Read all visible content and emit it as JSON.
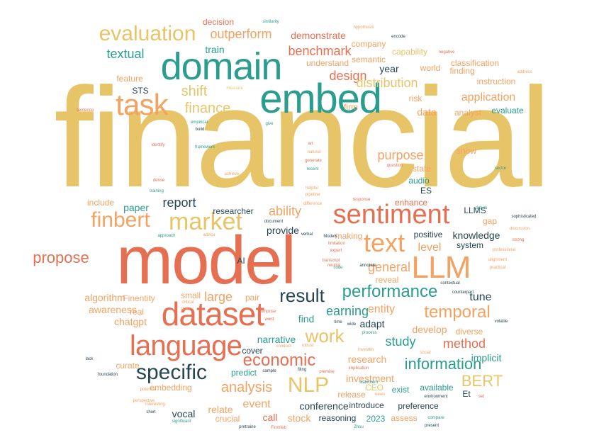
{
  "colors": {
    "yellow": "#e8c468",
    "red": "#e76f51",
    "teal": "#2a9d8f",
    "orange": "#f4a261",
    "navy": "#264653"
  },
  "words": [
    {
      "text": "financial",
      "color": "yellow"
    },
    {
      "text": "model",
      "color": "red"
    },
    {
      "text": "domain",
      "color": "teal"
    },
    {
      "text": "embed",
      "color": "teal"
    },
    {
      "text": "task",
      "color": "orange"
    },
    {
      "text": "evaluation",
      "color": "yellow"
    },
    {
      "text": "dataset",
      "color": "red"
    },
    {
      "text": "language",
      "color": "red"
    },
    {
      "text": "sentiment",
      "color": "red"
    },
    {
      "text": "LLM",
      "color": "orange"
    },
    {
      "text": "text",
      "color": "orange"
    },
    {
      "text": "market",
      "color": "yellow"
    },
    {
      "text": "finbert",
      "color": "orange"
    },
    {
      "text": "specific",
      "color": "navy"
    },
    {
      "text": "NLP",
      "color": "yellow"
    },
    {
      "text": "work",
      "color": "yellow"
    },
    {
      "text": "temporal",
      "color": "orange"
    },
    {
      "text": "performance",
      "color": "teal"
    },
    {
      "text": "result",
      "color": "navy"
    },
    {
      "text": "economic",
      "color": "red"
    },
    {
      "text": "information",
      "color": "teal"
    },
    {
      "text": "analysis",
      "color": "orange"
    },
    {
      "text": "propose",
      "color": "red"
    },
    {
      "text": "shift",
      "color": "yellow"
    },
    {
      "text": "finance",
      "color": "yellow"
    },
    {
      "text": "benchmark",
      "color": "red"
    },
    {
      "text": "outperform",
      "color": "orange"
    },
    {
      "text": "textual",
      "color": "teal"
    },
    {
      "text": "design",
      "color": "red"
    },
    {
      "text": "distribution",
      "color": "yellow"
    },
    {
      "text": "general",
      "color": "orange"
    },
    {
      "text": "ability",
      "color": "orange"
    },
    {
      "text": "report",
      "color": "navy"
    },
    {
      "text": "BERT",
      "color": "yellow"
    },
    {
      "text": "method",
      "color": "red"
    },
    {
      "text": "earning",
      "color": "teal"
    },
    {
      "text": "entity",
      "color": "orange"
    },
    {
      "text": "large",
      "color": "orange"
    },
    {
      "text": "study",
      "color": "teal"
    },
    {
      "text": "purpose",
      "color": "orange"
    },
    {
      "text": "level",
      "color": "orange"
    },
    {
      "text": "application",
      "color": "orange"
    },
    {
      "text": "demonstrate",
      "color": "red"
    },
    {
      "text": "train",
      "color": "teal"
    },
    {
      "text": "year",
      "color": "navy"
    },
    {
      "text": "data",
      "color": "orange"
    },
    {
      "text": "provide",
      "color": "navy"
    },
    {
      "text": "knowledge",
      "color": "navy"
    },
    {
      "text": "tune",
      "color": "navy"
    },
    {
      "text": "narrative",
      "color": "teal"
    },
    {
      "text": "find",
      "color": "teal"
    },
    {
      "text": "develop",
      "color": "orange"
    },
    {
      "text": "adapt",
      "color": "navy"
    },
    {
      "text": "event",
      "color": "orange"
    },
    {
      "text": "conference",
      "color": "navy"
    },
    {
      "text": "stock",
      "color": "orange"
    },
    {
      "text": "research",
      "color": "orange"
    },
    {
      "text": "investment",
      "color": "orange"
    },
    {
      "text": "implicit",
      "color": "teal"
    },
    {
      "text": "vocal",
      "color": "navy"
    },
    {
      "text": "call",
      "color": "red"
    },
    {
      "text": "relate",
      "color": "orange"
    },
    {
      "text": "chatgpt",
      "color": "orange"
    },
    {
      "text": "algorithm",
      "color": "orange"
    },
    {
      "text": "awareness",
      "color": "orange"
    },
    {
      "text": "paper",
      "color": "teal"
    },
    {
      "text": "STS",
      "color": "navy"
    },
    {
      "text": "feature",
      "color": "orange"
    },
    {
      "text": "include",
      "color": "orange"
    },
    {
      "text": "decision",
      "color": "red"
    },
    {
      "text": "company",
      "color": "orange"
    },
    {
      "text": "semantic",
      "color": "orange"
    },
    {
      "text": "capability",
      "color": "yellow"
    },
    {
      "text": "classification",
      "color": "orange"
    },
    {
      "text": "finding",
      "color": "orange"
    },
    {
      "text": "world",
      "color": "orange"
    },
    {
      "text": "understand",
      "color": "orange"
    },
    {
      "text": "instruction",
      "color": "orange"
    },
    {
      "text": "analyst",
      "color": "orange"
    },
    {
      "text": "evaluate",
      "color": "teal"
    },
    {
      "text": "risk",
      "color": "orange"
    },
    {
      "text": "firm",
      "color": "orange"
    },
    {
      "text": "show",
      "color": "orange"
    },
    {
      "text": "state",
      "color": "orange"
    },
    {
      "text": "audio",
      "color": "teal"
    },
    {
      "text": "enhance",
      "color": "red"
    },
    {
      "text": "LLMS",
      "color": "navy"
    },
    {
      "text": "gap",
      "color": "orange"
    },
    {
      "text": "system",
      "color": "navy"
    },
    {
      "text": "positive",
      "color": "navy"
    },
    {
      "text": "making",
      "color": "orange"
    },
    {
      "text": "reveal",
      "color": "orange"
    },
    {
      "text": "researcher",
      "color": "navy"
    },
    {
      "text": "small",
      "color": "orange"
    },
    {
      "text": "pair",
      "color": "orange"
    },
    {
      "text": "real",
      "color": "orange"
    },
    {
      "text": "Finentity",
      "color": "orange"
    },
    {
      "text": "diverse",
      "color": "orange"
    },
    {
      "text": "available",
      "color": "teal"
    },
    {
      "text": "exist",
      "color": "teal"
    },
    {
      "text": "preference",
      "color": "navy"
    },
    {
      "text": "introduce",
      "color": "navy"
    },
    {
      "text": "reasoning",
      "color": "navy"
    },
    {
      "text": "assess",
      "color": "orange"
    },
    {
      "text": "2023",
      "color": "teal"
    },
    {
      "text": "predict",
      "color": "teal"
    },
    {
      "text": "cover",
      "color": "navy"
    },
    {
      "text": "embedding",
      "color": "orange"
    },
    {
      "text": "crucial",
      "color": "orange"
    },
    {
      "text": "curate",
      "color": "orange"
    },
    {
      "text": "release",
      "color": "orange"
    },
    {
      "text": "CEO",
      "color": "yellow"
    },
    {
      "text": "AI",
      "color": "navy"
    },
    {
      "text": "Et",
      "color": "navy"
    },
    {
      "text": "ES",
      "color": "navy"
    },
    {
      "text": "similarity",
      "color": "teal"
    },
    {
      "text": "hypothesis",
      "color": "orange"
    },
    {
      "text": "encode",
      "color": "navy"
    },
    {
      "text": "negative",
      "color": "red"
    },
    {
      "text": "address",
      "color": "orange"
    },
    {
      "text": "sentence",
      "color": "red"
    },
    {
      "text": "empirical",
      "color": "teal"
    },
    {
      "text": "build",
      "color": "navy"
    },
    {
      "text": "identify",
      "color": "red"
    },
    {
      "text": "framework",
      "color": "teal"
    },
    {
      "text": "measure",
      "color": "yellow"
    },
    {
      "text": "give",
      "color": "teal"
    },
    {
      "text": "art",
      "color": "red"
    },
    {
      "text": "natural",
      "color": "orange"
    },
    {
      "text": "generate",
      "color": "red"
    },
    {
      "text": "recent",
      "color": "teal"
    },
    {
      "text": "question",
      "color": "red"
    },
    {
      "text": "sector",
      "color": "teal"
    },
    {
      "text": "dense",
      "color": "red"
    },
    {
      "text": "training",
      "color": "teal"
    },
    {
      "text": "achieve",
      "color": "orange"
    },
    {
      "text": "helpful",
      "color": "orange"
    },
    {
      "text": "pipeline",
      "color": "orange"
    },
    {
      "text": "difference",
      "color": "orange"
    },
    {
      "text": "response",
      "color": "red"
    },
    {
      "text": "datum",
      "color": "teal"
    },
    {
      "text": "sophisticated",
      "color": "navy"
    },
    {
      "text": "discussion",
      "color": "orange"
    },
    {
      "text": "strong",
      "color": "red"
    },
    {
      "text": "professional",
      "color": "orange"
    },
    {
      "text": "alignment",
      "color": "orange"
    },
    {
      "text": "practical",
      "color": "orange"
    },
    {
      "text": "approach",
      "color": "teal"
    },
    {
      "text": "advice",
      "color": "orange"
    },
    {
      "text": "verbal",
      "color": "navy"
    },
    {
      "text": "document",
      "color": "navy"
    },
    {
      "text": "Models",
      "color": "navy"
    },
    {
      "text": "limitation",
      "color": "red"
    },
    {
      "text": "expert",
      "color": "red"
    },
    {
      "text": "code",
      "color": "teal"
    },
    {
      "text": "transcript",
      "color": "red"
    },
    {
      "text": "annotate",
      "color": "navy"
    },
    {
      "text": "neutral",
      "color": "red"
    },
    {
      "text": "contextual",
      "color": "navy"
    },
    {
      "text": "counterpart",
      "color": "navy"
    },
    {
      "text": "volatile",
      "color": "navy"
    },
    {
      "text": "critical",
      "color": "orange"
    },
    {
      "text": "span",
      "color": "orange"
    },
    {
      "text": "comprise",
      "color": "red"
    },
    {
      "text": "word",
      "color": "red"
    },
    {
      "text": "time",
      "color": "navy"
    },
    {
      "text": "wide",
      "color": "navy"
    },
    {
      "text": "process",
      "color": "teal"
    },
    {
      "text": "robust",
      "color": "orange"
    },
    {
      "text": "conduct",
      "color": "orange"
    },
    {
      "text": "investlm",
      "color": "orange"
    },
    {
      "text": "implication",
      "color": "red"
    },
    {
      "text": "social",
      "color": "orange"
    },
    {
      "text": "lack",
      "color": "navy"
    },
    {
      "text": "foundation",
      "color": "navy"
    },
    {
      "text": "potential",
      "color": "orange"
    },
    {
      "text": "perspective",
      "color": "orange"
    },
    {
      "text": "interesting",
      "color": "orange"
    },
    {
      "text": "short",
      "color": "navy"
    },
    {
      "text": "significant",
      "color": "teal"
    },
    {
      "text": "sample",
      "color": "navy"
    },
    {
      "text": "filing",
      "color": "navy"
    },
    {
      "text": "premise",
      "color": "red"
    },
    {
      "text": "statement",
      "color": "teal"
    },
    {
      "text": "news",
      "color": "orange"
    },
    {
      "text": "environment",
      "color": "navy"
    },
    {
      "text": "compare",
      "color": "teal"
    },
    {
      "text": "present",
      "color": "navy"
    },
    {
      "text": "pretraine",
      "color": "navy"
    },
    {
      "text": "Finmteb",
      "color": "red"
    },
    {
      "text": "Zhou",
      "color": "teal"
    },
    {
      "text": "set",
      "color": "red"
    }
  ]
}
